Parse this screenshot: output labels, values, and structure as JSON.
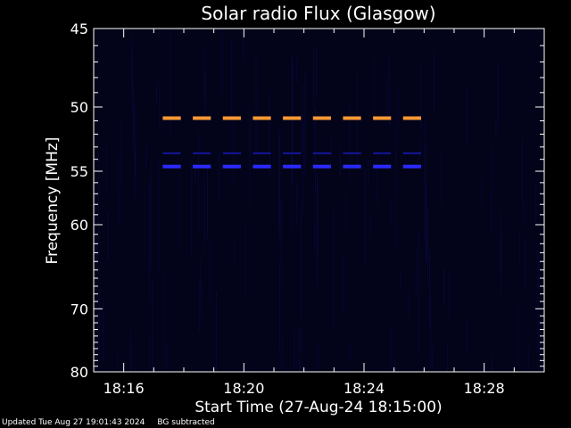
{
  "chart_data": {
    "type": "heatmap",
    "title": "Solar radio Flux (Glasgow)",
    "xlabel": "Start Time (27-Aug-24 18:15:00)",
    "ylabel": "Frequency [MHz]",
    "x_ticks": [
      "18:16",
      "18:20",
      "18:24",
      "18:28"
    ],
    "x_tick_minutes": [
      1,
      5,
      9,
      13
    ],
    "xlim_minutes": [
      0,
      15
    ],
    "y_ticks": [
      45,
      50,
      55,
      60,
      70,
      80
    ],
    "ylim": [
      45,
      80
    ],
    "y_scale": "reciprocal",
    "grid": false,
    "features": [
      {
        "name": "orange-band",
        "color": "#ff9933",
        "freq": 50.8,
        "segments": [
          [
            2.3,
            2.9
          ],
          [
            3.3,
            3.9
          ],
          [
            4.3,
            4.9
          ],
          [
            5.3,
            5.9
          ],
          [
            6.3,
            6.9
          ],
          [
            7.3,
            7.9
          ],
          [
            8.3,
            8.9
          ],
          [
            9.3,
            9.9
          ],
          [
            10.3,
            10.9
          ]
        ]
      },
      {
        "name": "blue-band",
        "color": "#2a2aff",
        "freq": 54.6,
        "segments": [
          [
            2.3,
            2.9
          ],
          [
            3.3,
            3.9
          ],
          [
            4.3,
            4.9
          ],
          [
            5.3,
            5.9
          ],
          [
            6.3,
            6.9
          ],
          [
            7.3,
            7.9
          ],
          [
            8.3,
            8.9
          ],
          [
            9.3,
            9.9
          ],
          [
            10.3,
            10.9
          ]
        ]
      },
      {
        "name": "faint-band",
        "color": "#15159a",
        "freq": 53.5,
        "segments": [
          [
            2.3,
            2.9
          ],
          [
            3.3,
            3.9
          ],
          [
            4.3,
            4.9
          ],
          [
            5.3,
            5.9
          ],
          [
            6.3,
            6.9
          ],
          [
            7.3,
            7.9
          ],
          [
            8.3,
            8.9
          ],
          [
            9.3,
            9.9
          ],
          [
            10.3,
            10.9
          ]
        ]
      }
    ],
    "colors": {
      "background": "#000000",
      "plot_bg": "#03031a",
      "axes": "#ffffff"
    }
  },
  "footer": {
    "updated": "Updated Tue Aug 27 19:01:43 2024",
    "note": "BG subtracted"
  }
}
